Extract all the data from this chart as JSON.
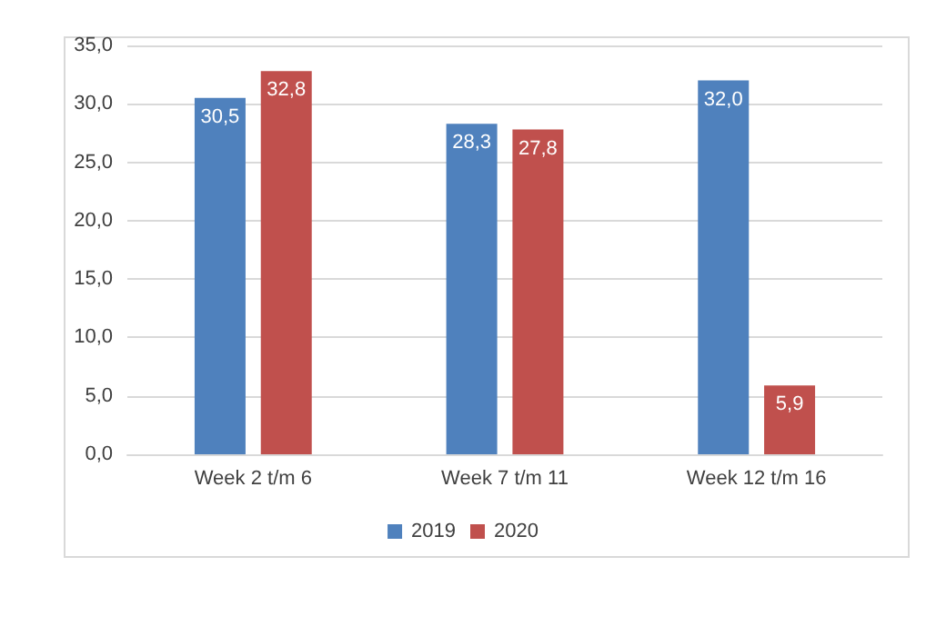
{
  "chart_data": {
    "type": "bar",
    "categories": [
      "Week 2 t/m 6",
      "Week 7 t/m 11",
      "Week 12 t/m 16"
    ],
    "series": [
      {
        "name": "2019",
        "color": "#4f81bd",
        "values": [
          30.5,
          28.3,
          32.0
        ],
        "value_labels": [
          "30,5",
          "28,3",
          "32,0"
        ]
      },
      {
        "name": "2020",
        "color": "#c0504d",
        "values": [
          32.8,
          27.8,
          5.9
        ],
        "value_labels": [
          "32,8",
          "27,8",
          "5,9"
        ]
      }
    ],
    "ylim": [
      0,
      35
    ],
    "yticks": [
      {
        "value": 0,
        "label": "0,0"
      },
      {
        "value": 5,
        "label": "5,0"
      },
      {
        "value": 10,
        "label": "10,0"
      },
      {
        "value": 15,
        "label": "15,0"
      },
      {
        "value": 20,
        "label": "20,0"
      },
      {
        "value": 25,
        "label": "25,0"
      },
      {
        "value": 30,
        "label": "30,0"
      },
      {
        "value": 35,
        "label": "35,0"
      }
    ],
    "grid": "y",
    "legend": "bottom"
  }
}
